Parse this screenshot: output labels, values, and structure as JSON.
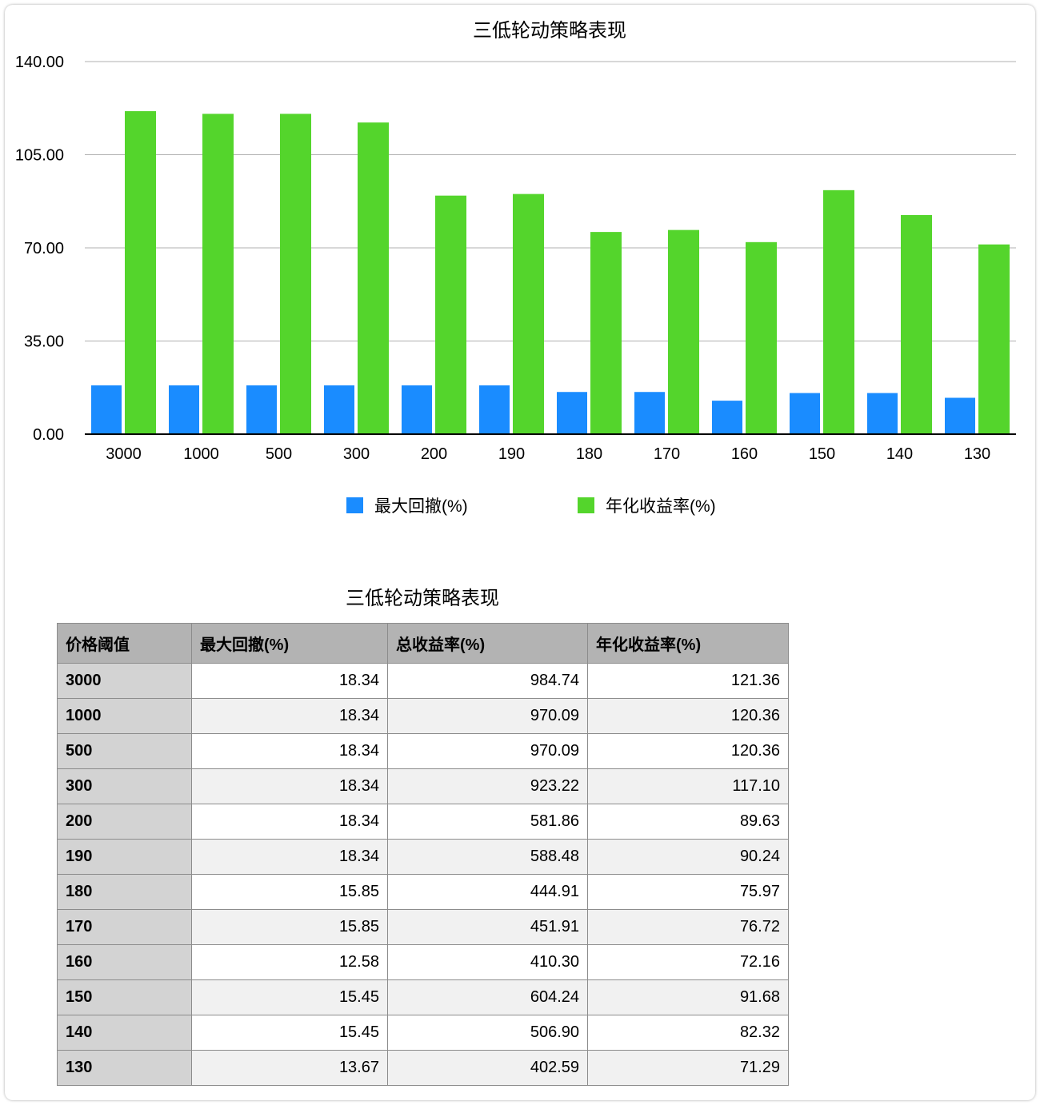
{
  "chart_data": {
    "type": "bar",
    "title": "三低轮动策略表现",
    "categories": [
      "3000",
      "1000",
      "500",
      "300",
      "200",
      "190",
      "180",
      "170",
      "160",
      "150",
      "140",
      "130"
    ],
    "series": [
      {
        "name": "最大回撤(%)",
        "color": "#1a8cff",
        "values": [
          18.34,
          18.34,
          18.34,
          18.34,
          18.34,
          18.34,
          15.85,
          15.85,
          12.58,
          15.45,
          15.45,
          13.67
        ]
      },
      {
        "name": "年化收益率(%)",
        "color": "#54d52c",
        "values": [
          121.36,
          120.36,
          120.36,
          117.1,
          89.63,
          90.24,
          75.97,
          76.72,
          72.16,
          91.68,
          82.32,
          71.29
        ]
      }
    ],
    "yticks": [
      "0.00",
      "35.00",
      "70.00",
      "105.00",
      "140.00"
    ],
    "ylim": [
      0,
      140
    ],
    "grid": true,
    "legend": "bottom"
  },
  "table": {
    "title": "三低轮动策略表现",
    "headers": [
      "价格阈值",
      "最大回撤(%)",
      "总收益率(%)",
      "年化收益率(%)"
    ],
    "rows": [
      [
        "3000",
        "18.34",
        "984.74",
        "121.36"
      ],
      [
        "1000",
        "18.34",
        "970.09",
        "120.36"
      ],
      [
        "500",
        "18.34",
        "970.09",
        "120.36"
      ],
      [
        "300",
        "18.34",
        "923.22",
        "117.10"
      ],
      [
        "200",
        "18.34",
        "581.86",
        "89.63"
      ],
      [
        "190",
        "18.34",
        "588.48",
        "90.24"
      ],
      [
        "180",
        "15.85",
        "444.91",
        "75.97"
      ],
      [
        "170",
        "15.85",
        "451.91",
        "76.72"
      ],
      [
        "160",
        "12.58",
        "410.30",
        "72.16"
      ],
      [
        "150",
        "15.45",
        "604.24",
        "91.68"
      ],
      [
        "140",
        "15.45",
        "506.90",
        "82.32"
      ],
      [
        "130",
        "13.67",
        "402.59",
        "71.29"
      ]
    ]
  }
}
